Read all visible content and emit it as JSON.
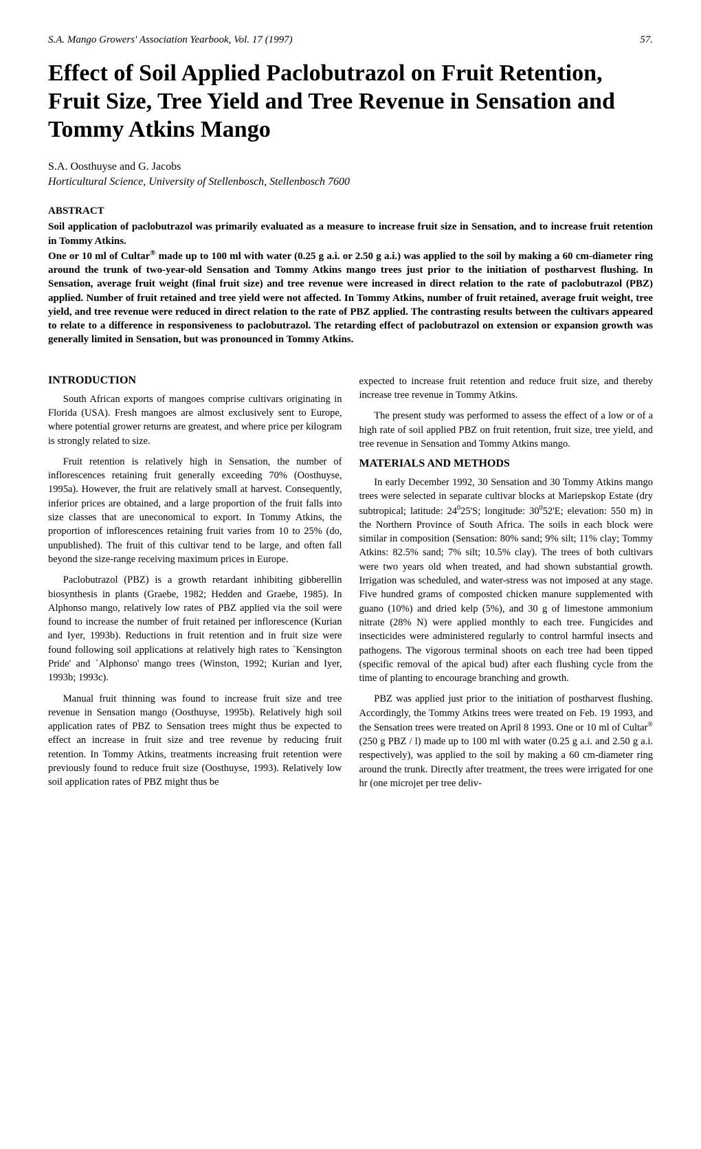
{
  "header": {
    "journal": "S.A. Mango Growers' Association Yearbook, Vol. 17 (1997)",
    "pageNumber": "57."
  },
  "title": "Effect of Soil Applied Paclobutrazol on Fruit Retention, Fruit Size, Tree Yield and Tree Revenue in Sensation and Tommy Atkins Mango",
  "authors": "S.A. Oosthuyse and G. Jacobs",
  "affiliation": "Horticultural Science, University of Stellenbosch, Stellenbosch 7600",
  "abstract": {
    "heading": "ABSTRACT",
    "p1": "Soil application of paclobutrazol was primarily evaluated as a measure to increase fruit size in Sensation, and to increase fruit retention in Tommy Atkins.",
    "p2a": "One or 10 ml of Cultar",
    "p2sup": "®",
    "p2b": " made up to 100 ml with water (0.25 g a.i. or 2.50 g a.i.) was applied to the soil by making a 60 cm-diameter ring around the trunk of two-year-old Sensation and Tommy Atkins mango trees just prior to the initiation of postharvest flushing. In Sensation, average fruit weight (final fruit size) and tree revenue were increased in direct relation to the rate of paclobutrazol (PBZ) applied. Number of fruit retained and tree yield were not affected. In Tommy Atkins, number of fruit retained, average fruit weight, tree yield, and tree revenue were reduced in direct relation to the rate of PBZ applied. The contrasting results between the cultivars appeared to relate to a difference in responsiveness to paclobutrazol. The retarding effect of paclobutrazol on extension or expansion growth was generally limited in Sensation, but was pronounced in Tommy Atkins."
  },
  "sections": {
    "intro": {
      "heading": "INTRODUCTION",
      "p1": "South African exports of mangoes comprise cultivars originating in Florida (USA). Fresh mangoes are almost exclusively sent to Europe, where potential grower returns are greatest, and where price per kilogram is strongly related to size.",
      "p2": "Fruit retention is relatively high in Sensation, the number of inflorescences retaining fruit generally exceeding 70% (Oosthuyse, 1995a). However, the fruit are relatively small at harvest. Consequently, inferior prices are obtained, and a large proportion of the fruit falls into size classes that are uneconomical to export. In Tommy Atkins, the proportion of inflorescences retaining fruit varies from 10 to 25% (do, unpublished). The fruit of this cultivar tend to be large, and often fall beyond the size-range receiving maximum prices in Europe.",
      "p3": "Paclobutrazol (PBZ) is a growth retardant inhibiting gibberellin biosynthesis in plants (Graebe, 1982; Hedden and Graebe, 1985). In Alphonso mango, relatively low rates of PBZ applied via the soil were found to increase the number of fruit retained per inflorescence (Kurian and Iyer, 1993b). Reductions in fruit retention and in fruit size were found following soil applications at relatively high rates to `Kensington Pride' and `Alphonso' mango trees (Winston, 1992; Kurian and Iyer, 1993b; 1993c).",
      "p4": "Manual fruit thinning was found to increase fruit size and tree revenue in Sensation mango (Oosthuyse, 1995b). Relatively high soil application rates of PBZ to Sensation trees might thus be expected to effect an increase in fruit size and tree revenue by reducing fruit retention. In Tommy Atkins, treatments increasing fruit retention were previously found to reduce fruit size (Oosthuyse, 1993). Relatively low soil application rates of PBZ might thus be",
      "p5": "expected to increase fruit retention and reduce fruit size, and thereby increase tree revenue in Tommy Atkins.",
      "p6": "The present study was performed to assess the effect of a low or of a high rate of soil applied PBZ on fruit retention, fruit size, tree yield, and tree revenue in Sensation and Tommy Atkins mango."
    },
    "methods": {
      "heading": "MATERIALS AND METHODS",
      "p1a": "In early December 1992, 30 Sensation and 30 Tommy Atkins mango trees were selected in separate cultivar blocks at Mariepskop Estate (dry subtropical; latitude: 24",
      "p1sup1": "0",
      "p1b": "25'S; longitude: 30",
      "p1sup2": "0",
      "p1c": "52'E; elevation: 550 m) in the Northern Province of South Africa. The soils in each block were similar in composition (Sensation: 80% sand; 9% silt; 11% clay; Tommy Atkins: 82.5% sand; 7% silt; 10.5% clay). The trees of both cultivars were two years old when treated, and had shown substantial growth. Irrigation was scheduled, and water-stress was not imposed at any stage. Five hundred grams of composted chicken manure supplemented with guano (10%) and dried kelp (5%), and 30 g of limestone ammonium nitrate (28% N) were applied monthly to each tree. Fungicides and insecticides were administered regularly to control harmful insects and pathogens. The vigorous terminal shoots on each tree had been tipped (specific removal of the apical bud) after each flushing cycle from the time of planting to encourage branching and growth.",
      "p2a": "PBZ was applied just prior to the initiation of postharvest flushing. Accordingly, the Tommy Atkins trees were treated on Feb. 19 1993, and the Sensation trees were treated on April 8 1993. One or 10 ml of Cultar",
      "p2sup": "®",
      "p2b": " (250 g PBZ / l) made up to 100 ml with water (0.25 g a.i. and 2.50 g a.i. respectively), was applied to the soil by making a 60 cm-diameter ring around the trunk. Directly after treatment, the trees were irrigated for one hr (one microjet per tree deliv-"
    }
  }
}
